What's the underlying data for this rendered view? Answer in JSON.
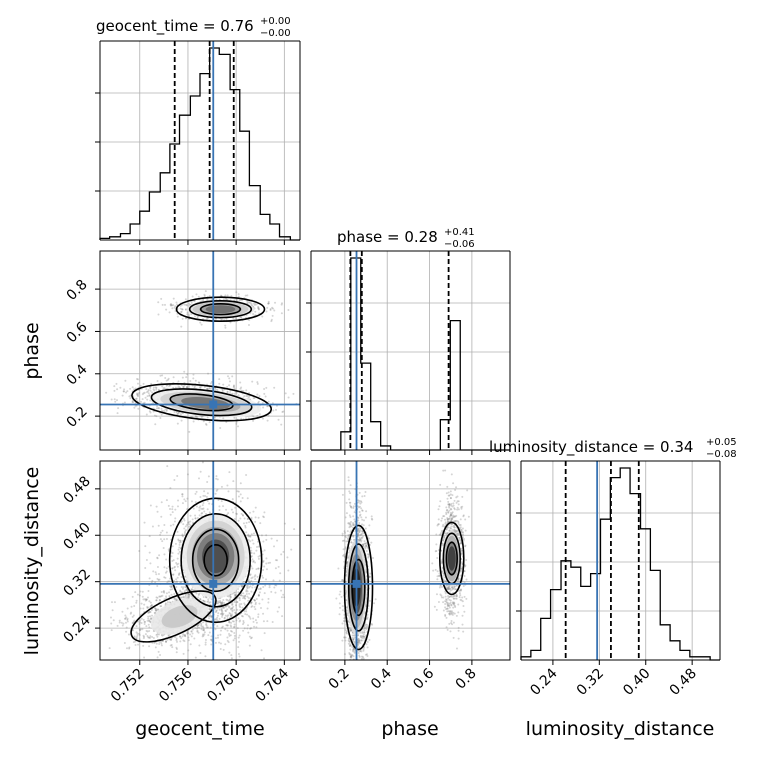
{
  "chart_data": {
    "type": "corner",
    "parameters": [
      "geocent_time",
      "phase",
      "luminosity_distance"
    ],
    "colors": {
      "truth": "#3874b4",
      "hist": "#000000",
      "quantile": "#000000",
      "grid": "#b0b0b0",
      "density": "#000000"
    },
    "titles": [
      {
        "base": "geocent_time = 0.76",
        "plus": "+0.00",
        "minus": "−0.00"
      },
      {
        "base": "phase = 0.28",
        "plus": "+0.41",
        "minus": "−0.06"
      },
      {
        "base": "luminosity_distance = 0.34",
        "plus": "+0.05",
        "minus": "−0.08"
      }
    ],
    "axis_labels": {
      "x": [
        "geocent_time",
        "phase",
        "luminosity_distance"
      ],
      "y": [
        "phase",
        "luminosity_distance"
      ]
    },
    "ranges": {
      "geocent_time": [
        0.7487,
        0.7653
      ],
      "phase": [
        0.04,
        0.98
      ],
      "luminosity_distance": [
        0.185,
        0.528
      ]
    },
    "ticks": {
      "geocent_time": {
        "values": [
          0.752,
          0.756,
          0.76,
          0.764
        ],
        "labels": [
          "0.752",
          "0.756",
          "0.760",
          "0.764"
        ]
      },
      "phase": {
        "values": [
          0.2,
          0.4,
          0.6,
          0.8
        ],
        "labels": [
          "0.2",
          "0.4",
          "0.6",
          "0.8"
        ]
      },
      "luminosity_distance": {
        "values": [
          0.24,
          0.32,
          0.4,
          0.48
        ],
        "labels": [
          "0.24",
          "0.32",
          "0.40",
          "0.48"
        ]
      }
    },
    "truths": {
      "geocent_time": 0.7581,
      "phase": 0.255,
      "luminosity_distance": 0.3162
    },
    "quantiles": {
      "geocent_time": [
        0.7549,
        0.7578,
        0.7598
      ],
      "phase": [
        0.226,
        0.28,
        0.69
      ],
      "luminosity_distance": [
        0.262,
        0.34,
        0.388
      ]
    },
    "histograms": {
      "geocent_time": {
        "edges": [
          0.7487,
          0.7495,
          0.7504,
          0.7512,
          0.752,
          0.7528,
          0.7537,
          0.7545,
          0.7553,
          0.7562,
          0.757,
          0.7578,
          0.7586,
          0.7595,
          0.7603,
          0.7611,
          0.762,
          0.7628,
          0.7636,
          0.7645,
          0.7653
        ],
        "counts": [
          0.5,
          1,
          2,
          5,
          9,
          15,
          21,
          30,
          39,
          45,
          52,
          60,
          58,
          47,
          34,
          17,
          8,
          5,
          1,
          0
        ]
      },
      "phase": {
        "edges": [
          0.04,
          0.087,
          0.134,
          0.181,
          0.228,
          0.275,
          0.322,
          0.369,
          0.416,
          0.463,
          0.51,
          0.557,
          0.604,
          0.651,
          0.698,
          0.745,
          0.792,
          0.839,
          0.886,
          0.933,
          0.98
        ],
        "counts": [
          0,
          0,
          0,
          9,
          95,
          43,
          14,
          2,
          0,
          0,
          0,
          0,
          0,
          15,
          64,
          0,
          0,
          0,
          0,
          0
        ]
      },
      "luminosity_distance": {
        "edges": [
          0.185,
          0.202,
          0.219,
          0.236,
          0.254,
          0.271,
          0.288,
          0.305,
          0.322,
          0.339,
          0.356,
          0.373,
          0.391,
          0.408,
          0.425,
          0.442,
          0.459,
          0.476,
          0.493,
          0.511,
          0.528
        ],
        "counts": [
          1,
          3,
          13,
          22,
          31,
          29,
          23,
          27,
          44,
          57,
          60,
          52,
          41,
          28,
          11,
          6,
          3,
          1,
          1,
          0
        ]
      }
    }
  }
}
